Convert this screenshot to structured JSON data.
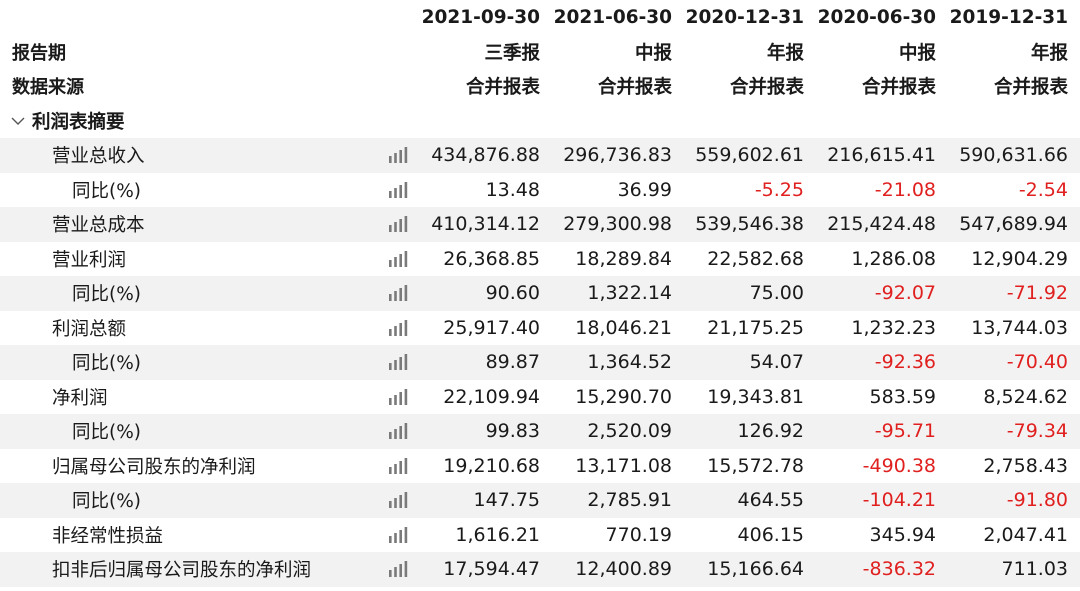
{
  "header": {
    "row_label_period": "报告期",
    "row_label_source": "数据来源",
    "columns": [
      {
        "date": "2021-09-30",
        "type": "三季报",
        "source": "合并报表"
      },
      {
        "date": "2021-06-30",
        "type": "中报",
        "source": "合并报表"
      },
      {
        "date": "2020-12-31",
        "type": "年报",
        "source": "合并报表"
      },
      {
        "date": "2020-06-30",
        "type": "中报",
        "source": "合并报表"
      },
      {
        "date": "2019-12-31",
        "type": "年报",
        "source": "合并报表"
      }
    ]
  },
  "section": {
    "title": "利润表摘要",
    "expand_icon": "chevron-down-icon"
  },
  "rows": [
    {
      "label": "营业总收入",
      "indent": 1,
      "values": [
        "434,876.88",
        "296,736.83",
        "559,602.61",
        "216,615.41",
        "590,631.66"
      ]
    },
    {
      "label": "同比(%)",
      "indent": 2,
      "values": [
        "13.48",
        "36.99",
        "-5.25",
        "-21.08",
        "-2.54"
      ]
    },
    {
      "label": "营业总成本",
      "indent": 1,
      "values": [
        "410,314.12",
        "279,300.98",
        "539,546.38",
        "215,424.48",
        "547,689.94"
      ]
    },
    {
      "label": "营业利润",
      "indent": 1,
      "values": [
        "26,368.85",
        "18,289.84",
        "22,582.68",
        "1,286.08",
        "12,904.29"
      ]
    },
    {
      "label": "同比(%)",
      "indent": 2,
      "values": [
        "90.60",
        "1,322.14",
        "75.00",
        "-92.07",
        "-71.92"
      ]
    },
    {
      "label": "利润总额",
      "indent": 1,
      "values": [
        "25,917.40",
        "18,046.21",
        "21,175.25",
        "1,232.23",
        "13,744.03"
      ]
    },
    {
      "label": "同比(%)",
      "indent": 2,
      "values": [
        "89.87",
        "1,364.52",
        "54.07",
        "-92.36",
        "-70.40"
      ]
    },
    {
      "label": "净利润",
      "indent": 1,
      "values": [
        "22,109.94",
        "15,290.70",
        "19,343.81",
        "583.59",
        "8,524.62"
      ]
    },
    {
      "label": "同比(%)",
      "indent": 2,
      "values": [
        "99.83",
        "2,520.09",
        "126.92",
        "-95.71",
        "-79.34"
      ]
    },
    {
      "label": "归属母公司股东的净利润",
      "indent": 1,
      "values": [
        "19,210.68",
        "13,171.08",
        "15,572.78",
        "-490.38",
        "2,758.43"
      ]
    },
    {
      "label": "同比(%)",
      "indent": 2,
      "values": [
        "147.75",
        "2,785.91",
        "464.55",
        "-104.21",
        "-91.80"
      ]
    },
    {
      "label": "非经常性损益",
      "indent": 1,
      "values": [
        "1,616.21",
        "770.19",
        "406.15",
        "345.94",
        "2,047.41"
      ]
    },
    {
      "label": "扣非后归属母公司股东的净利润",
      "indent": 1,
      "values": [
        "17,594.47",
        "12,400.89",
        "15,166.64",
        "-836.32",
        "711.03"
      ]
    }
  ],
  "row_icon": "bar-chart-icon",
  "colors": {
    "negative": "#e0201f",
    "shade": "#f2f2f2",
    "text": "#1a1a1a",
    "icon": "#7a7a7a"
  }
}
